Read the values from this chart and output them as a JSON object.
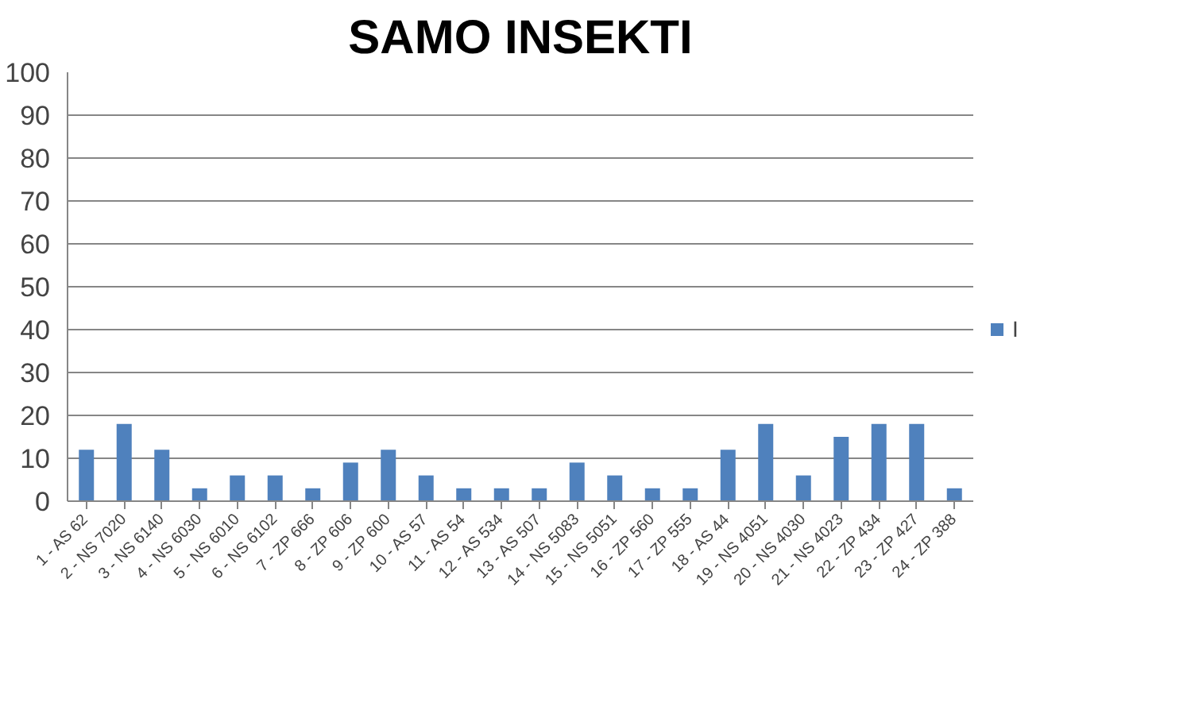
{
  "chart_data": {
    "type": "bar",
    "title": "SAMO INSEKTI",
    "categories": [
      "1 - AS 62",
      "2 - NS 7020",
      "3 - NS 6140",
      "4 - NS 6030",
      "5 - NS 6010",
      "6 - NS 6102",
      "7 - ZP 666",
      "8 - ZP 606",
      "9 - ZP 600",
      "10 - AS 57",
      "11 - AS 54",
      "12 - AS 534",
      "13 - AS 507",
      "14 - NS 5083",
      "15 - NS 5051",
      "16 - ZP 560",
      "17 - ZP 555",
      "18 - AS 44",
      "19 - NS 4051",
      "20 - NS 4030",
      "21 - NS 4023",
      "22 - ZP 434",
      "23 - ZP 427",
      "24 - ZP 388"
    ],
    "series": [
      {
        "name": "I",
        "color": "#4f81bd",
        "values": [
          12,
          18,
          12,
          3,
          6,
          6,
          3,
          9,
          12,
          6,
          3,
          3,
          3,
          9,
          6,
          3,
          3,
          12,
          18,
          6,
          15,
          18,
          18,
          3
        ]
      }
    ],
    "ylim": [
      0,
      100
    ],
    "yticks": [
      0,
      10,
      20,
      30,
      40,
      50,
      60,
      70,
      80,
      90,
      100
    ],
    "grid": "y",
    "legend": "right"
  }
}
